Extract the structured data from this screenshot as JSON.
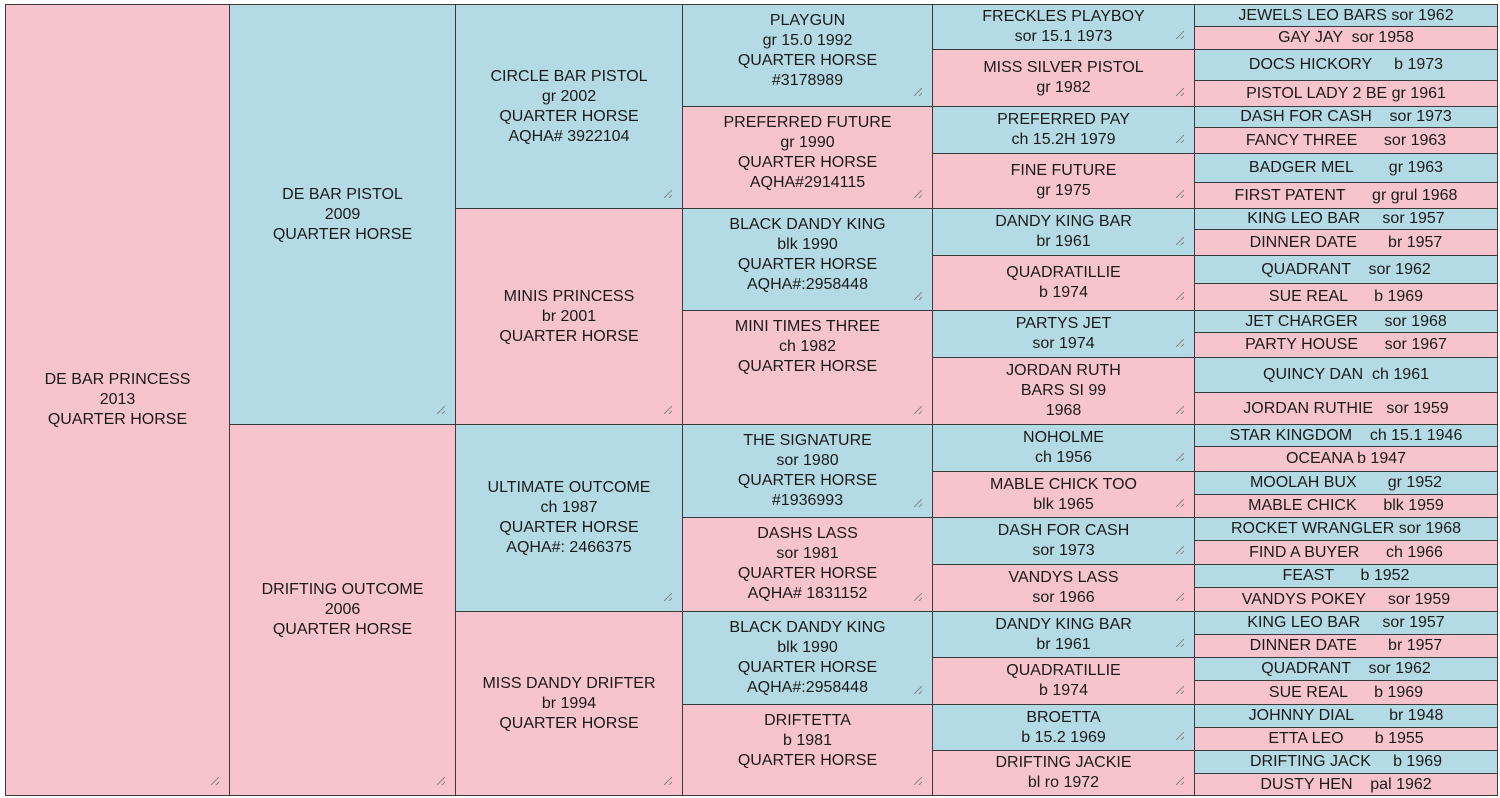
{
  "colors": {
    "pink": "#f7c3cd",
    "blue": "#b4dbe5",
    "border": "#3a3a3a"
  },
  "cells": [
    {
      "id": "subject",
      "text": "DE BAR PRINCESS\n2013\nQUARTER HORSE",
      "color": "pink"
    },
    {
      "id": "sire",
      "text": "DE BAR PISTOL\n2009\nQUARTER HORSE",
      "color": "blue"
    },
    {
      "id": "dam",
      "text": "DRIFTING OUTCOME\n2006\nQUARTER HORSE",
      "color": "pink"
    },
    {
      "id": "s_s",
      "text": "CIRCLE BAR PISTOL\ngr 2002\nQUARTER HORSE\nAQHA# 3922104",
      "color": "blue"
    },
    {
      "id": "s_d",
      "text": "MINIS PRINCESS\nbr 2001\nQUARTER HORSE",
      "color": "pink"
    },
    {
      "id": "d_s",
      "text": "ULTIMATE OUTCOME\nch 1987\nQUARTER HORSE\nAQHA#: 2466375",
      "color": "blue"
    },
    {
      "id": "d_d",
      "text": "MISS DANDY DRIFTER\nbr 1994\nQUARTER HORSE",
      "color": "pink"
    },
    {
      "id": "g4_1",
      "text": "PLAYGUN\ngr 15.0 1992\nQUARTER HORSE\n#3178989",
      "color": "blue"
    },
    {
      "id": "g4_2",
      "text": "PREFERRED FUTURE\ngr 1990\nQUARTER HORSE\nAQHA#2914115",
      "color": "pink"
    },
    {
      "id": "g4_3",
      "text": "BLACK DANDY KING\nblk 1990\nQUARTER HORSE\nAQHA#:2958448",
      "color": "blue"
    },
    {
      "id": "g4_4",
      "text": "MINI TIMES THREE\nch 1982\nQUARTER HORSE",
      "color": "pink"
    },
    {
      "id": "g4_5",
      "text": "THE SIGNATURE\nsor 1980\nQUARTER HORSE\n#1936993",
      "color": "blue"
    },
    {
      "id": "g4_6",
      "text": "DASHS LASS\nsor 1981\nQUARTER HORSE\nAQHA# 1831152",
      "color": "pink"
    },
    {
      "id": "g4_7",
      "text": "BLACK DANDY KING\nblk 1990\nQUARTER HORSE\nAQHA#:2958448",
      "color": "blue"
    },
    {
      "id": "g4_8",
      "text": "DRIFTETTA\nb 1981\nQUARTER HORSE",
      "color": "pink"
    },
    {
      "id": "g5_1",
      "text": "FRECKLES PLAYBOY\nsor 15.1 1973",
      "color": "blue"
    },
    {
      "id": "g5_2",
      "text": "MISS SILVER PISTOL\ngr 1982",
      "color": "pink"
    },
    {
      "id": "g5_3",
      "text": "PREFERRED PAY\nch 15.2H 1979",
      "color": "blue"
    },
    {
      "id": "g5_4",
      "text": "FINE FUTURE\ngr 1975",
      "color": "pink"
    },
    {
      "id": "g5_5",
      "text": "DANDY KING BAR\nbr 1961",
      "color": "blue"
    },
    {
      "id": "g5_6",
      "text": "QUADRATILLIE\nb 1974",
      "color": "pink"
    },
    {
      "id": "g5_7",
      "text": "PARTYS JET\nsor 1974",
      "color": "blue"
    },
    {
      "id": "g5_8",
      "text": "JORDAN RUTH\nBARS SI 99\n1968",
      "color": "pink"
    },
    {
      "id": "g5_9",
      "text": "NOHOLME\nch 1956",
      "color": "blue"
    },
    {
      "id": "g5_10",
      "text": "MABLE CHICK TOO\nblk 1965",
      "color": "pink"
    },
    {
      "id": "g5_11",
      "text": "DASH FOR CASH\nsor 1973",
      "color": "blue"
    },
    {
      "id": "g5_12",
      "text": "VANDYS LASS\nsor 1966",
      "color": "pink"
    },
    {
      "id": "g5_13",
      "text": "DANDY KING BAR\nbr 1961",
      "color": "blue"
    },
    {
      "id": "g5_14",
      "text": "QUADRATILLIE\nb 1974",
      "color": "pink"
    },
    {
      "id": "g5_15",
      "text": "BROETTA\nb 15.2 1969",
      "color": "blue"
    },
    {
      "id": "g5_16",
      "text": "DRIFTING JACKIE\nbl ro 1972",
      "color": "pink"
    },
    {
      "id": "g6_1",
      "text": "JEWELS LEO BARS sor 1962",
      "color": "blue"
    },
    {
      "id": "g6_2",
      "text": "GAY JAY  sor 1958",
      "color": "pink"
    },
    {
      "id": "g6_3",
      "text": "DOCS HICKORY     b 1973",
      "color": "blue"
    },
    {
      "id": "g6_4",
      "text": "PISTOL LADY 2 BE gr 1961",
      "color": "pink"
    },
    {
      "id": "g6_5",
      "text": "DASH FOR CASH    sor 1973",
      "color": "blue"
    },
    {
      "id": "g6_6",
      "text": "FANCY THREE      sor 1963",
      "color": "pink"
    },
    {
      "id": "g6_7",
      "text": "BADGER MEL        gr 1963",
      "color": "blue"
    },
    {
      "id": "g6_8",
      "text": "FIRST PATENT      gr grul 1968",
      "color": "pink"
    },
    {
      "id": "g6_9",
      "text": "KING LEO BAR     sor 1957",
      "color": "blue"
    },
    {
      "id": "g6_10",
      "text": "DINNER DATE       br 1957",
      "color": "pink"
    },
    {
      "id": "g6_11",
      "text": "QUADRANT    sor 1962",
      "color": "blue"
    },
    {
      "id": "g6_12",
      "text": "SUE REAL      b 1969",
      "color": "pink"
    },
    {
      "id": "g6_13",
      "text": "JET CHARGER      sor 1968",
      "color": "blue"
    },
    {
      "id": "g6_14",
      "text": "PARTY HOUSE      sor 1967",
      "color": "pink"
    },
    {
      "id": "g6_15",
      "text": "QUINCY DAN  ch 1961",
      "color": "blue"
    },
    {
      "id": "g6_16",
      "text": "JORDAN RUTHIE   sor 1959",
      "color": "pink"
    },
    {
      "id": "g6_17",
      "text": "STAR KINGDOM    ch 15.1 1946",
      "color": "blue"
    },
    {
      "id": "g6_18",
      "text": "OCEANA b 1947",
      "color": "pink"
    },
    {
      "id": "g6_19",
      "text": "MOOLAH BUX       gr 1952",
      "color": "blue"
    },
    {
      "id": "g6_20",
      "text": "MABLE CHICK      blk 1959",
      "color": "pink"
    },
    {
      "id": "g6_21",
      "text": "ROCKET WRANGLER sor 1968",
      "color": "blue"
    },
    {
      "id": "g6_22",
      "text": "FIND A BUYER      ch 1966",
      "color": "pink"
    },
    {
      "id": "g6_23",
      "text": "FEAST      b 1952",
      "color": "blue"
    },
    {
      "id": "g6_24",
      "text": "VANDYS POKEY     sor 1959",
      "color": "pink"
    },
    {
      "id": "g6_25",
      "text": "KING LEO BAR     sor 1957",
      "color": "blue"
    },
    {
      "id": "g6_26",
      "text": "DINNER DATE       br 1957",
      "color": "pink"
    },
    {
      "id": "g6_27",
      "text": "QUADRANT    sor 1962",
      "color": "blue"
    },
    {
      "id": "g6_28",
      "text": "SUE REAL      b 1969",
      "color": "pink"
    },
    {
      "id": "g6_29",
      "text": "JOHNNY DIAL        br 1948",
      "color": "blue"
    },
    {
      "id": "g6_30",
      "text": "ETTA LEO       b 1955",
      "color": "pink"
    },
    {
      "id": "g6_31",
      "text": "DRIFTING JACK     b 1969",
      "color": "blue"
    },
    {
      "id": "g6_32",
      "text": "DUSTY HEN    pal 1962",
      "color": "pink"
    }
  ]
}
